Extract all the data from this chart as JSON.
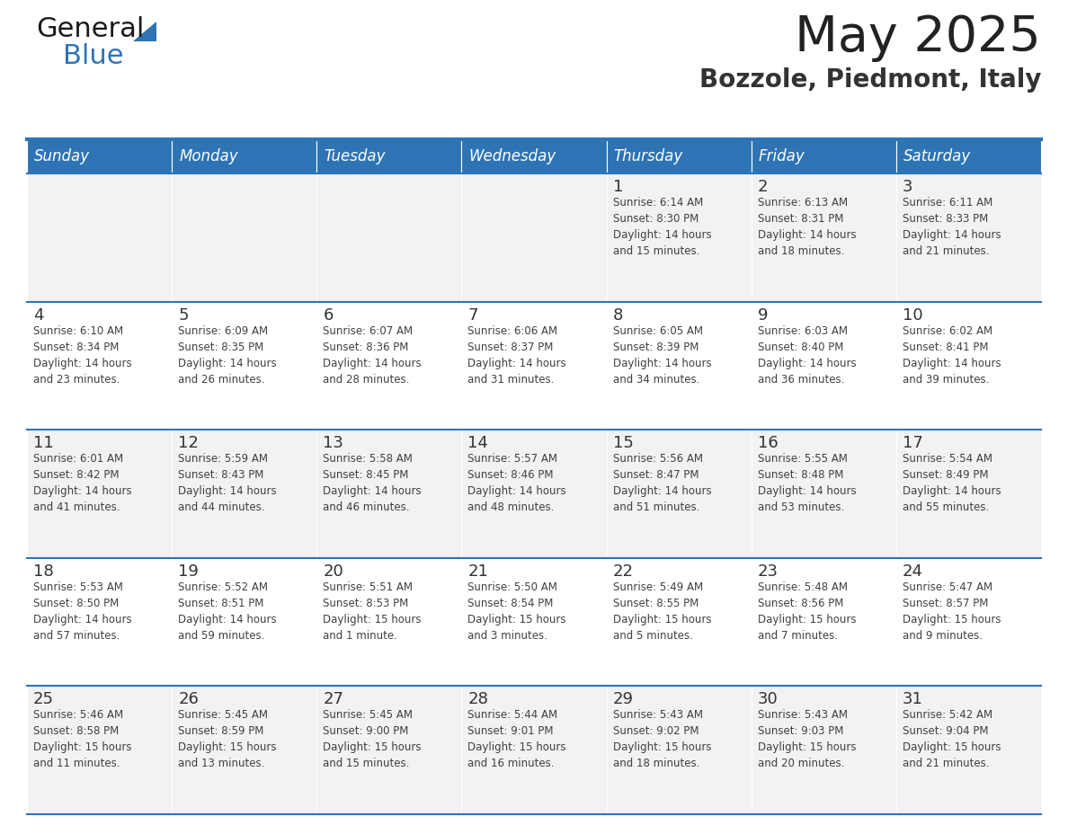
{
  "title": "May 2025",
  "subtitle": "Bozzole, Piedmont, Italy",
  "days_of_week": [
    "Sunday",
    "Monday",
    "Tuesday",
    "Wednesday",
    "Thursday",
    "Friday",
    "Saturday"
  ],
  "header_bg": "#2E74B5",
  "header_text_color": "#FFFFFF",
  "row_bg_even": "#F2F2F2",
  "row_bg_odd": "#FFFFFF",
  "text_color": "#404040",
  "day_num_color": "#333333",
  "separator_color": "#2E74B5",
  "bg_color": "#FFFFFF",
  "title_color": "#222222",
  "subtitle_color": "#333333",
  "logo_general_color": "#1a1a1a",
  "logo_blue_color": "#2E74B5",
  "logo_triangle_color": "#2E74B5",
  "calendar": [
    [
      {
        "day": 0,
        "info": ""
      },
      {
        "day": 0,
        "info": ""
      },
      {
        "day": 0,
        "info": ""
      },
      {
        "day": 0,
        "info": ""
      },
      {
        "day": 1,
        "info": "Sunrise: 6:14 AM\nSunset: 8:30 PM\nDaylight: 14 hours\nand 15 minutes."
      },
      {
        "day": 2,
        "info": "Sunrise: 6:13 AM\nSunset: 8:31 PM\nDaylight: 14 hours\nand 18 minutes."
      },
      {
        "day": 3,
        "info": "Sunrise: 6:11 AM\nSunset: 8:33 PM\nDaylight: 14 hours\nand 21 minutes."
      }
    ],
    [
      {
        "day": 4,
        "info": "Sunrise: 6:10 AM\nSunset: 8:34 PM\nDaylight: 14 hours\nand 23 minutes."
      },
      {
        "day": 5,
        "info": "Sunrise: 6:09 AM\nSunset: 8:35 PM\nDaylight: 14 hours\nand 26 minutes."
      },
      {
        "day": 6,
        "info": "Sunrise: 6:07 AM\nSunset: 8:36 PM\nDaylight: 14 hours\nand 28 minutes."
      },
      {
        "day": 7,
        "info": "Sunrise: 6:06 AM\nSunset: 8:37 PM\nDaylight: 14 hours\nand 31 minutes."
      },
      {
        "day": 8,
        "info": "Sunrise: 6:05 AM\nSunset: 8:39 PM\nDaylight: 14 hours\nand 34 minutes."
      },
      {
        "day": 9,
        "info": "Sunrise: 6:03 AM\nSunset: 8:40 PM\nDaylight: 14 hours\nand 36 minutes."
      },
      {
        "day": 10,
        "info": "Sunrise: 6:02 AM\nSunset: 8:41 PM\nDaylight: 14 hours\nand 39 minutes."
      }
    ],
    [
      {
        "day": 11,
        "info": "Sunrise: 6:01 AM\nSunset: 8:42 PM\nDaylight: 14 hours\nand 41 minutes."
      },
      {
        "day": 12,
        "info": "Sunrise: 5:59 AM\nSunset: 8:43 PM\nDaylight: 14 hours\nand 44 minutes."
      },
      {
        "day": 13,
        "info": "Sunrise: 5:58 AM\nSunset: 8:45 PM\nDaylight: 14 hours\nand 46 minutes."
      },
      {
        "day": 14,
        "info": "Sunrise: 5:57 AM\nSunset: 8:46 PM\nDaylight: 14 hours\nand 48 minutes."
      },
      {
        "day": 15,
        "info": "Sunrise: 5:56 AM\nSunset: 8:47 PM\nDaylight: 14 hours\nand 51 minutes."
      },
      {
        "day": 16,
        "info": "Sunrise: 5:55 AM\nSunset: 8:48 PM\nDaylight: 14 hours\nand 53 minutes."
      },
      {
        "day": 17,
        "info": "Sunrise: 5:54 AM\nSunset: 8:49 PM\nDaylight: 14 hours\nand 55 minutes."
      }
    ],
    [
      {
        "day": 18,
        "info": "Sunrise: 5:53 AM\nSunset: 8:50 PM\nDaylight: 14 hours\nand 57 minutes."
      },
      {
        "day": 19,
        "info": "Sunrise: 5:52 AM\nSunset: 8:51 PM\nDaylight: 14 hours\nand 59 minutes."
      },
      {
        "day": 20,
        "info": "Sunrise: 5:51 AM\nSunset: 8:53 PM\nDaylight: 15 hours\nand 1 minute."
      },
      {
        "day": 21,
        "info": "Sunrise: 5:50 AM\nSunset: 8:54 PM\nDaylight: 15 hours\nand 3 minutes."
      },
      {
        "day": 22,
        "info": "Sunrise: 5:49 AM\nSunset: 8:55 PM\nDaylight: 15 hours\nand 5 minutes."
      },
      {
        "day": 23,
        "info": "Sunrise: 5:48 AM\nSunset: 8:56 PM\nDaylight: 15 hours\nand 7 minutes."
      },
      {
        "day": 24,
        "info": "Sunrise: 5:47 AM\nSunset: 8:57 PM\nDaylight: 15 hours\nand 9 minutes."
      }
    ],
    [
      {
        "day": 25,
        "info": "Sunrise: 5:46 AM\nSunset: 8:58 PM\nDaylight: 15 hours\nand 11 minutes."
      },
      {
        "day": 26,
        "info": "Sunrise: 5:45 AM\nSunset: 8:59 PM\nDaylight: 15 hours\nand 13 minutes."
      },
      {
        "day": 27,
        "info": "Sunrise: 5:45 AM\nSunset: 9:00 PM\nDaylight: 15 hours\nand 15 minutes."
      },
      {
        "day": 28,
        "info": "Sunrise: 5:44 AM\nSunset: 9:01 PM\nDaylight: 15 hours\nand 16 minutes."
      },
      {
        "day": 29,
        "info": "Sunrise: 5:43 AM\nSunset: 9:02 PM\nDaylight: 15 hours\nand 18 minutes."
      },
      {
        "day": 30,
        "info": "Sunrise: 5:43 AM\nSunset: 9:03 PM\nDaylight: 15 hours\nand 20 minutes."
      },
      {
        "day": 31,
        "info": "Sunrise: 5:42 AM\nSunset: 9:04 PM\nDaylight: 15 hours\nand 21 minutes."
      }
    ]
  ]
}
